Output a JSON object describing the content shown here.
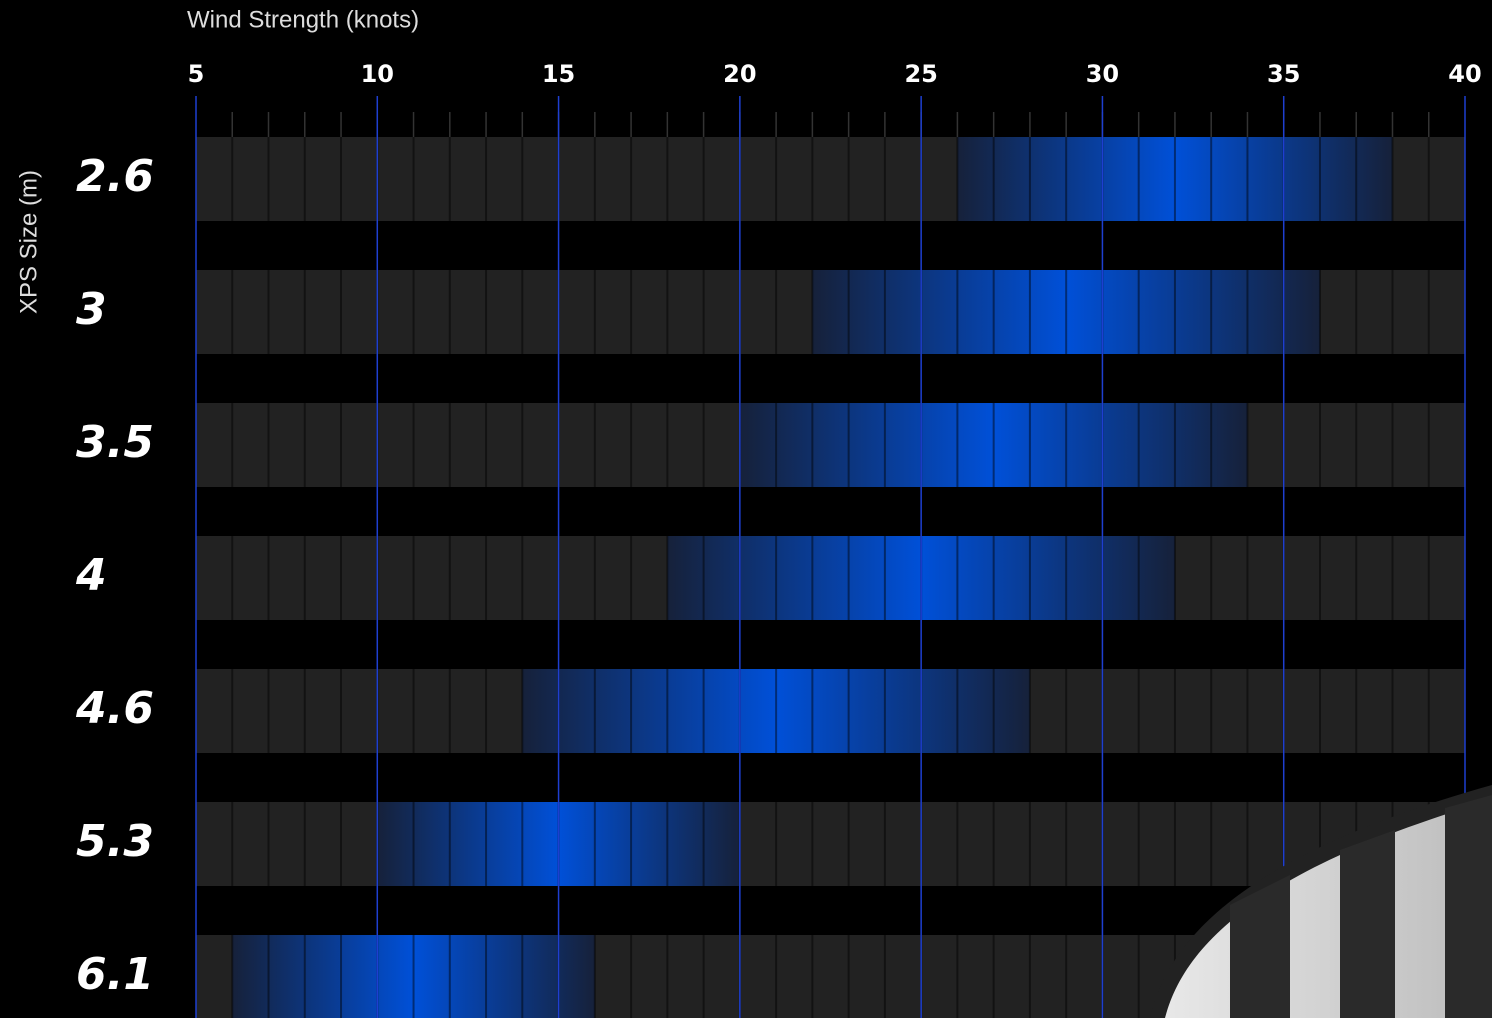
{
  "chart_data": {
    "type": "range-bar",
    "x_label": "Wind Strength (knots)",
    "y_label": "XPS Size (m)",
    "categories": [
      "2.6",
      "3",
      "3.5",
      "4",
      "4.6",
      "5.3",
      "6.1"
    ],
    "low": [
      26,
      22,
      20,
      18,
      14,
      10,
      6
    ],
    "high": [
      38,
      36,
      34,
      32,
      28,
      20,
      16
    ],
    "color": "#0050d8",
    "xlim": [
      5,
      40
    ],
    "xticks": [
      5,
      10,
      15,
      20,
      25,
      30,
      35,
      40
    ],
    "grid": true
  }
}
